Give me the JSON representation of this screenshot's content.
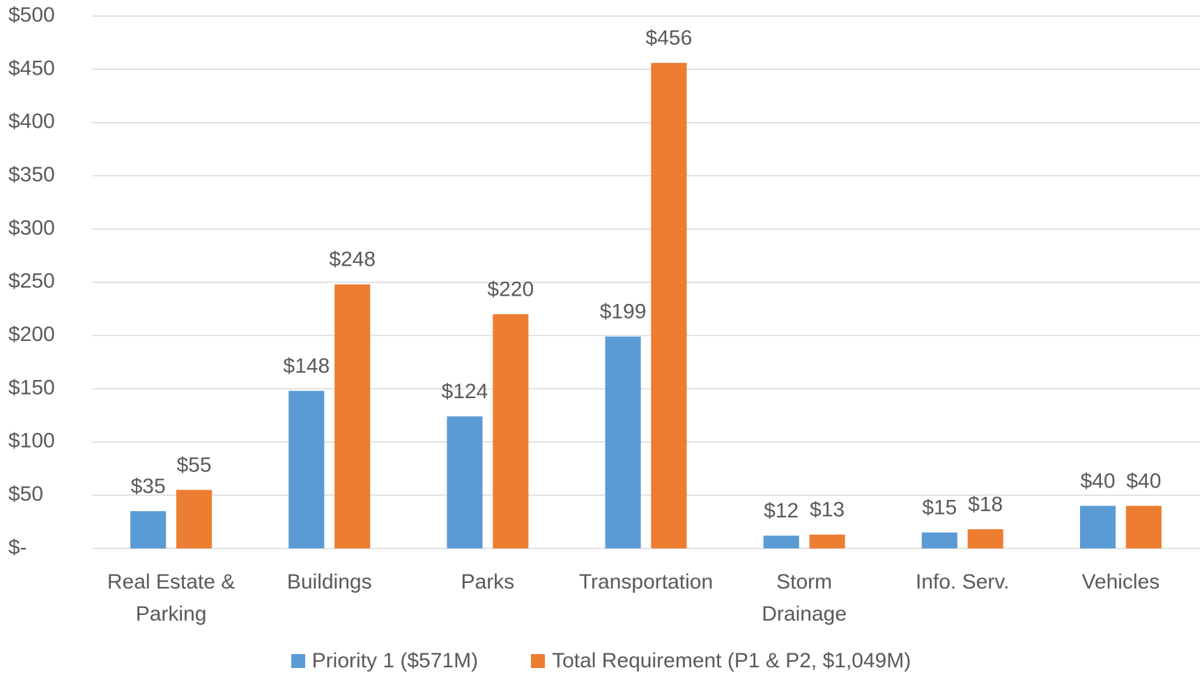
{
  "chart_data": {
    "type": "bar",
    "categories": [
      "Real Estate & Parking",
      "Buildings",
      "Parks",
      "Transportation",
      "Storm Drainage",
      "Info. Serv.",
      "Vehicles"
    ],
    "series": [
      {
        "name": "Priority 1 ($571M)",
        "color": "#5b9bd5",
        "values": [
          35,
          148,
          124,
          199,
          12,
          15,
          40
        ],
        "value_labels": [
          "$35",
          "$148",
          "$124",
          "$199",
          "$12",
          "$15",
          "$40"
        ]
      },
      {
        "name": "Total Requirement (P1 & P2, $1,049M)",
        "color": "#ed7d31",
        "values": [
          55,
          248,
          220,
          456,
          13,
          18,
          40
        ],
        "value_labels": [
          "$55",
          "$248",
          "$220",
          "$456",
          "$13",
          "$18",
          "$40"
        ]
      }
    ],
    "ylim": [
      0,
      500
    ],
    "yticks": [
      {
        "value": 0,
        "label": "$-"
      },
      {
        "value": 50,
        "label": "$50"
      },
      {
        "value": 100,
        "label": "$100"
      },
      {
        "value": 150,
        "label": "$150"
      },
      {
        "value": 200,
        "label": "$200"
      },
      {
        "value": 250,
        "label": "$250"
      },
      {
        "value": 300,
        "label": "$300"
      },
      {
        "value": 350,
        "label": "$350"
      },
      {
        "value": 400,
        "label": "$400"
      },
      {
        "value": 450,
        "label": "$450"
      },
      {
        "value": 500,
        "label": "$500"
      }
    ],
    "grid": true,
    "legend": "bottom"
  }
}
